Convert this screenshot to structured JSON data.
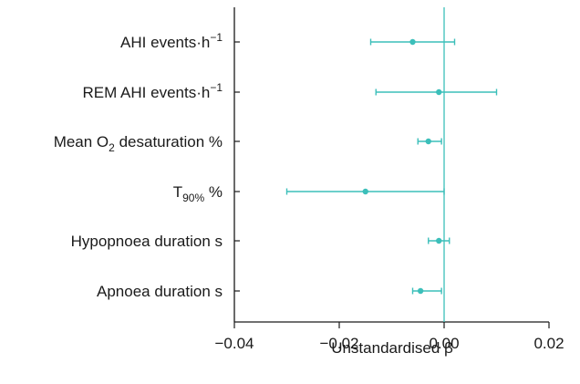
{
  "chart_data": {
    "type": "scatter",
    "title": "",
    "xlabel": "Unstandardised β",
    "ylabel": "",
    "xlim": [
      -0.04,
      0.02
    ],
    "x_ticks": [
      -0.04,
      -0.02,
      0.0,
      0.02
    ],
    "x_tick_labels": [
      "−0.04",
      "−0.02",
      "0.00",
      "0.02"
    ],
    "reference_line_x": 0.0,
    "grid": false,
    "marker_color": "#3cbfba",
    "categories": [
      {
        "label_parts": [
          {
            "t": "AHI events·h"
          },
          {
            "t": "−1",
            "s": "sup"
          }
        ]
      },
      {
        "label_parts": [
          {
            "t": "REM AHI events·h"
          },
          {
            "t": "−1",
            "s": "sup"
          }
        ]
      },
      {
        "label_parts": [
          {
            "t": "Mean O"
          },
          {
            "t": "2",
            "s": "sub"
          },
          {
            "t": " desaturation %"
          }
        ]
      },
      {
        "label_parts": [
          {
            "t": "T"
          },
          {
            "t": "90%",
            "s": "sub"
          },
          {
            "t": " %"
          }
        ]
      },
      {
        "label_parts": [
          {
            "t": "Hypopnoea duration s"
          }
        ]
      },
      {
        "label_parts": [
          {
            "t": "Apnoea duration s"
          }
        ]
      }
    ],
    "series": [
      {
        "estimate": [
          -0.006,
          -0.001,
          -0.003,
          -0.015,
          -0.001,
          -0.0045
        ],
        "ci_low": [
          -0.014,
          -0.013,
          -0.005,
          -0.03,
          -0.003,
          -0.006
        ],
        "ci_high": [
          0.002,
          0.01,
          -0.0005,
          0.0,
          0.001,
          -0.0005
        ]
      }
    ]
  }
}
